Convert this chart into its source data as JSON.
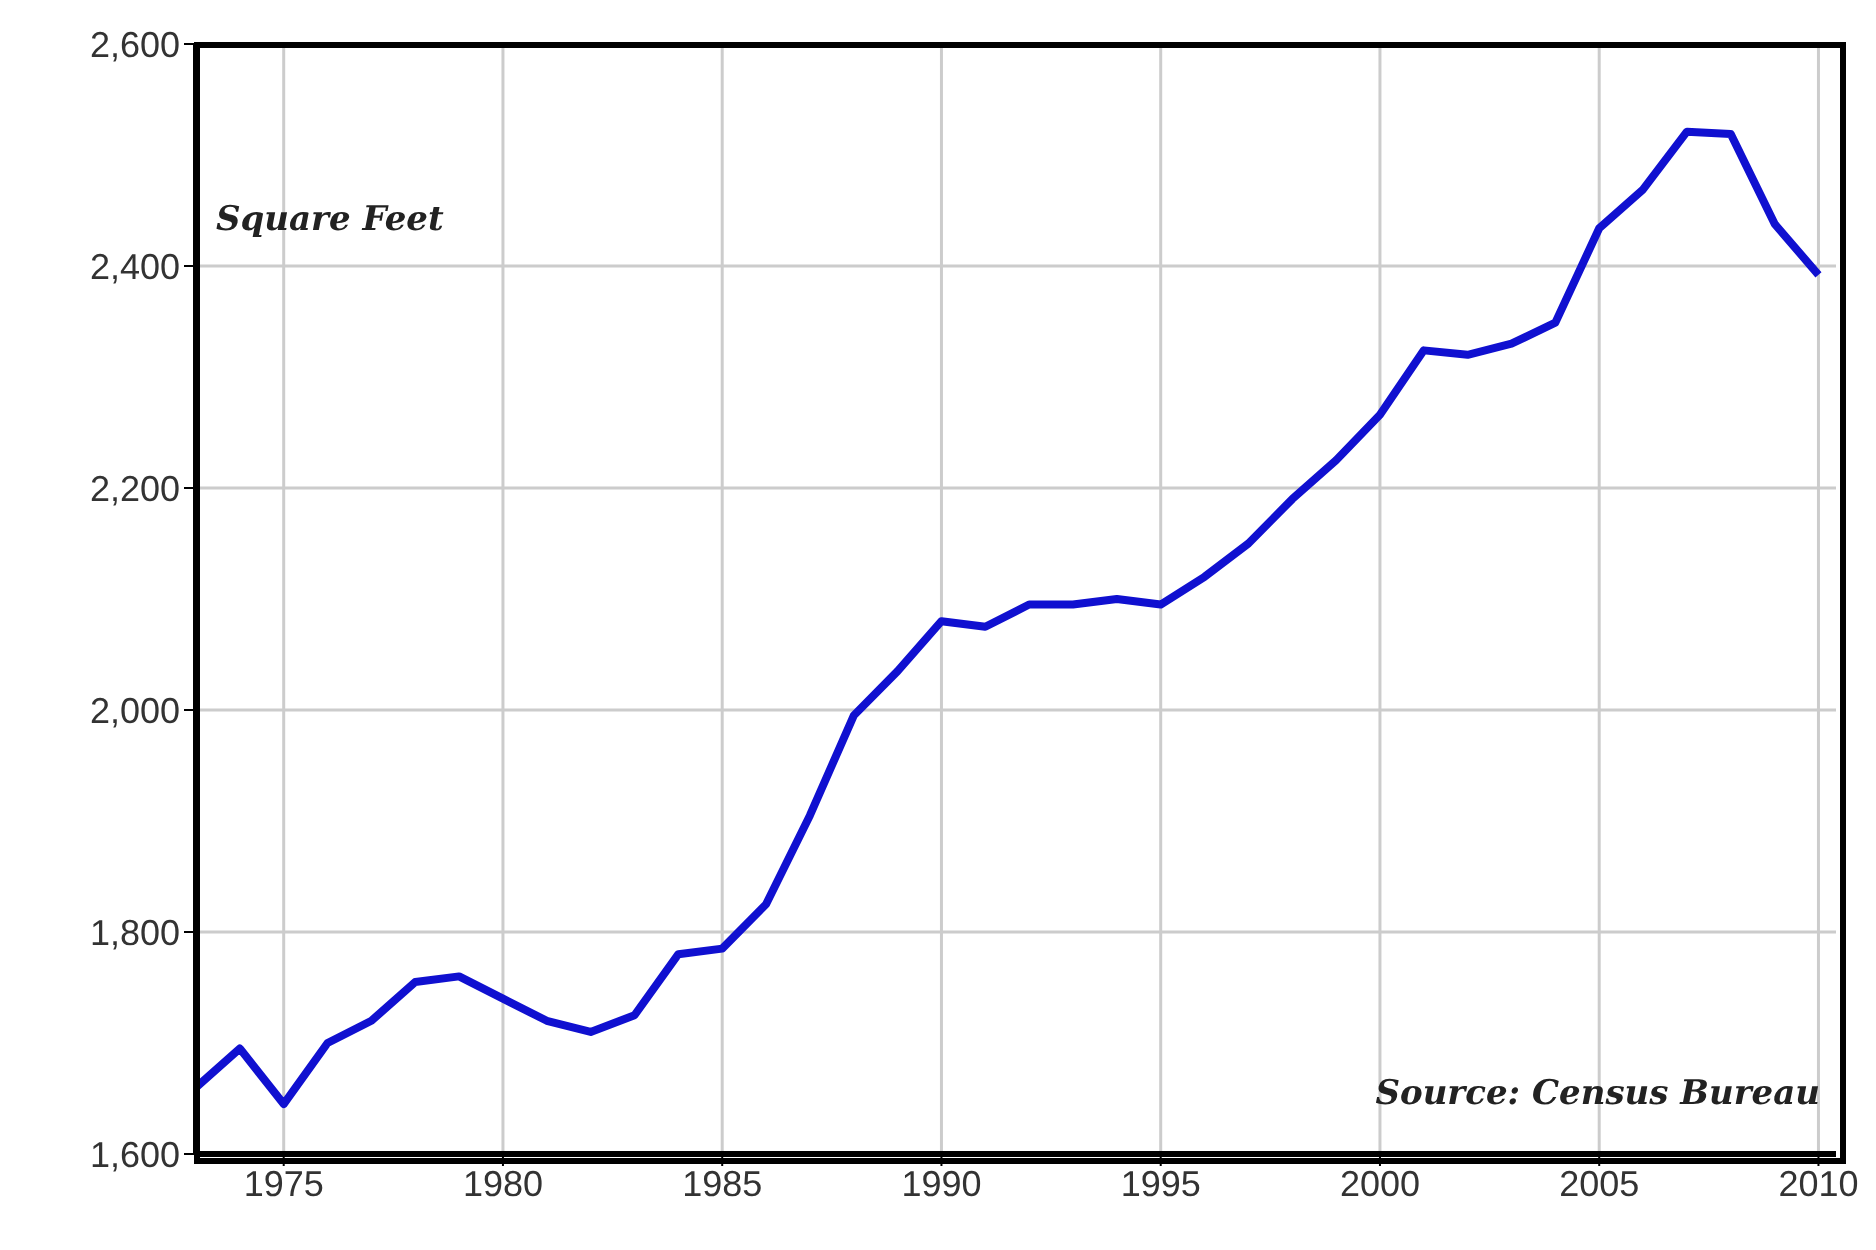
{
  "chart_data": {
    "type": "line",
    "x": [
      1973,
      1974,
      1975,
      1976,
      1977,
      1978,
      1979,
      1980,
      1981,
      1982,
      1983,
      1984,
      1985,
      1986,
      1987,
      1988,
      1989,
      1990,
      1991,
      1992,
      1993,
      1994,
      1995,
      1996,
      1997,
      1998,
      1999,
      2000,
      2001,
      2002,
      2003,
      2004,
      2005,
      2006,
      2007,
      2008,
      2009,
      2010
    ],
    "series": [
      {
        "color": "#1010d0",
        "values": [
          1660,
          1695,
          1645,
          1700,
          1720,
          1755,
          1760,
          1740,
          1720,
          1710,
          1725,
          1780,
          1785,
          1825,
          1905,
          1995,
          2035,
          2080,
          2075,
          2095,
          2095,
          2100,
          2095,
          2120,
          2150,
          2190,
          2225,
          2266,
          2324,
          2320,
          2330,
          2349,
          2434,
          2469,
          2521,
          2519,
          2438,
          2392
        ]
      }
    ],
    "xlim": [
      1973,
      2010.4
    ],
    "xticks": [
      1975,
      1980,
      1985,
      1990,
      1995,
      2000,
      2005,
      2010
    ],
    "ylim": [
      1600,
      2600
    ],
    "yticks": [
      {
        "value": 1600,
        "label": "1,600"
      },
      {
        "value": 1800,
        "label": "1,800"
      },
      {
        "value": 2000,
        "label": "2,000"
      },
      {
        "value": 2200,
        "label": "2,200"
      },
      {
        "value": 2400,
        "label": "2,400"
      },
      {
        "value": 2600,
        "label": "2,600"
      }
    ],
    "grid": true,
    "legend": false,
    "marker": "none",
    "line_style": "solid",
    "annotations": [
      "Square Feet",
      "Source: Census Bureau"
    ]
  }
}
